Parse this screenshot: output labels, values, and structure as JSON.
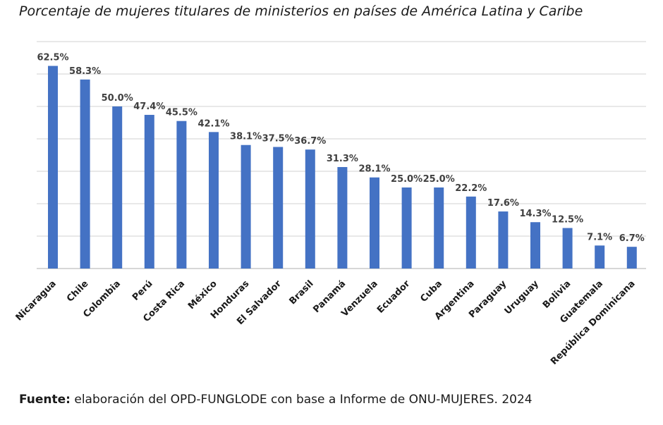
{
  "chart_data": {
    "type": "bar",
    "title": "Porcentaje de mujeres titulares de ministerios en países de América Latina y Caribe",
    "xlabel": "",
    "ylabel": "",
    "ylim": [
      0,
      70
    ],
    "grid": true,
    "categories": [
      "Nicaragua",
      "Chile",
      "Colombia",
      "Perú",
      "Costa Rica",
      "México",
      "Honduras",
      "El Salvador",
      "Brasil",
      "Panamá",
      "Venzuela",
      "Ecuador",
      "Cuba",
      "Argentina",
      "Paraguay",
      "Uruguay",
      "Bolivia",
      "Guatemala",
      "República Dominicana"
    ],
    "values": [
      62.5,
      58.3,
      50.0,
      47.4,
      45.5,
      42.1,
      38.1,
      37.5,
      36.7,
      31.3,
      28.1,
      25.0,
      25.0,
      22.2,
      17.6,
      14.3,
      12.5,
      7.1,
      6.7
    ],
    "data_labels": [
      "62.5%",
      "58.3%",
      "50.0%",
      "47.4%",
      "45.5%",
      "42.1%",
      "38.1%",
      "37.5%",
      "36.7%",
      "31.3%",
      "28.1%",
      "25.0%",
      "25.0%",
      "22.2%",
      "17.6%",
      "14.3%",
      "12.5%",
      "7.1%",
      "6.7%"
    ],
    "bar_color": "#4472c4"
  },
  "source": {
    "label": "Fuente:",
    "text": " elaboración del OPD-FUNGLODE con base a Informe de ONU-MUJERES. 2024"
  }
}
